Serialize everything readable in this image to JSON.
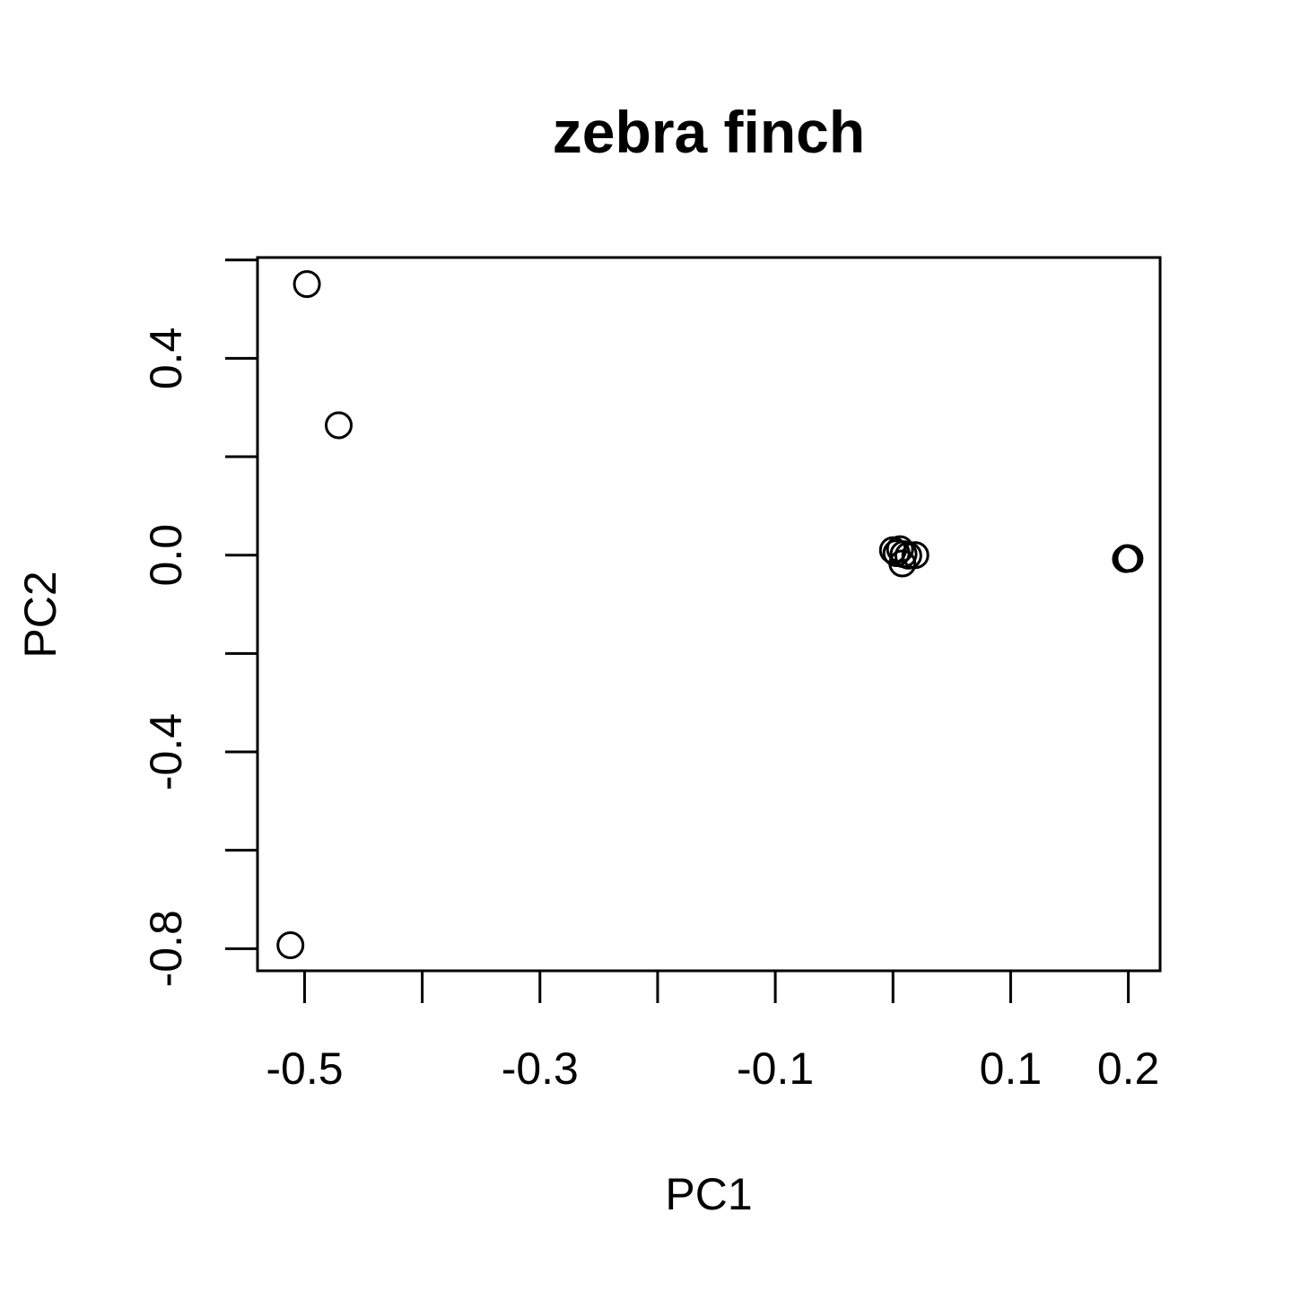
{
  "chart_data": {
    "type": "scatter",
    "title": "zebra finch",
    "xlabel": "PC1",
    "ylabel": "PC2",
    "xlim": [
      -0.54,
      0.227
    ],
    "ylim": [
      -0.845,
      0.605
    ],
    "xticks": [
      -0.5,
      -0.4,
      -0.3,
      -0.2,
      -0.1,
      0.0,
      0.1,
      0.2
    ],
    "xtick_labels": [
      "-0.5",
      "",
      "-0.3",
      "",
      "-0.1",
      "",
      "0.1",
      "0.2"
    ],
    "yticks": [
      -0.8,
      -0.6,
      -0.4,
      -0.2,
      0.0,
      0.2,
      0.4,
      0.6
    ],
    "ytick_labels": [
      "-0.8",
      "",
      "-0.4",
      "",
      "0.0",
      "",
      "0.4",
      ""
    ],
    "grid": false,
    "points": [
      {
        "x": -0.498,
        "y": 0.551
      },
      {
        "x": -0.471,
        "y": 0.264
      },
      {
        "x": -0.512,
        "y": -0.793
      },
      {
        "x": 0.0,
        "y": 0.01
      },
      {
        "x": 0.006,
        "y": 0.012
      },
      {
        "x": 0.009,
        "y": 0.002
      },
      {
        "x": 0.013,
        "y": -0.001
      },
      {
        "x": 0.019,
        "y": 0.0
      },
      {
        "x": 0.008,
        "y": -0.017
      },
      {
        "x": 0.003,
        "y": 0.004
      },
      {
        "x": 0.199,
        "y": -0.006
      },
      {
        "x": 0.201,
        "y": -0.007
      },
      {
        "x": 0.198,
        "y": -0.008
      }
    ]
  }
}
